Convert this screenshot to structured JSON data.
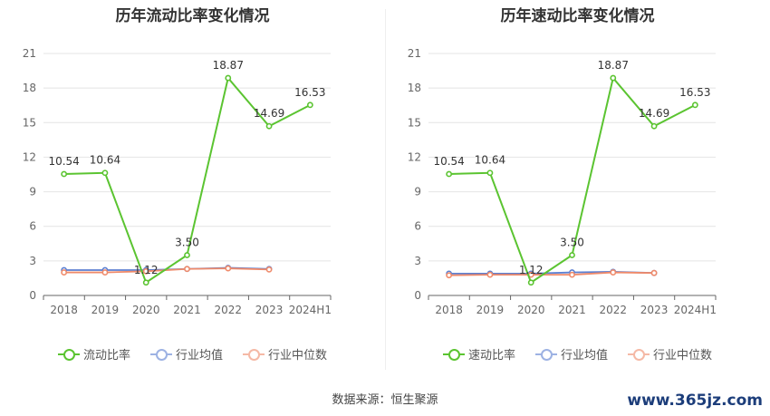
{
  "chart_data": [
    {
      "type": "line",
      "title": "历年流动比率变化情况",
      "categories": [
        "2018",
        "2019",
        "2020",
        "2021",
        "2022",
        "2023",
        "2024H1"
      ],
      "ylim": [
        0,
        21
      ],
      "yticks": [
        "0",
        "3",
        "6",
        "9",
        "12",
        "15",
        "18",
        "21"
      ],
      "grid": true,
      "legend_position": "bottom",
      "series": [
        {
          "name": "流动比率",
          "color": "#5bc431",
          "values": [
            10.54,
            10.64,
            1.12,
            3.5,
            18.87,
            14.69,
            16.53
          ],
          "labels": [
            "10.54",
            "10.64",
            "1.12",
            "3.50",
            "18.87",
            "14.69",
            "16.53"
          ]
        },
        {
          "name": "行业均值",
          "color": "#5b7fd1",
          "values": [
            2.2,
            2.2,
            2.2,
            2.3,
            2.4,
            2.3,
            null
          ]
        },
        {
          "name": "行业中位数",
          "color": "#ef8a6a",
          "values": [
            2.0,
            2.0,
            2.1,
            2.3,
            2.35,
            2.25,
            null
          ]
        }
      ]
    },
    {
      "type": "line",
      "title": "历年速动比率变化情况",
      "categories": [
        "2018",
        "2019",
        "2020",
        "2021",
        "2022",
        "2023",
        "2024H1"
      ],
      "ylim": [
        0,
        21
      ],
      "yticks": [
        "0",
        "3",
        "6",
        "9",
        "12",
        "15",
        "18",
        "21"
      ],
      "grid": true,
      "legend_position": "bottom",
      "series": [
        {
          "name": "速动比率",
          "color": "#5bc431",
          "values": [
            10.54,
            10.64,
            1.12,
            3.5,
            18.87,
            14.69,
            16.53
          ],
          "labels": [
            "10.54",
            "10.64",
            "1.12",
            "3.50",
            "18.87",
            "14.69",
            "16.53"
          ]
        },
        {
          "name": "行业均值",
          "color": "#5b7fd1",
          "values": [
            1.9,
            1.9,
            1.9,
            2.0,
            2.05,
            1.95,
            null
          ]
        },
        {
          "name": "行业中位数",
          "color": "#ef8a6a",
          "values": [
            1.75,
            1.8,
            1.8,
            1.8,
            2.0,
            1.95,
            null
          ]
        }
      ]
    }
  ],
  "footer": {
    "source": "数据来源：恒生聚源",
    "watermark": "www.365jz.com"
  }
}
